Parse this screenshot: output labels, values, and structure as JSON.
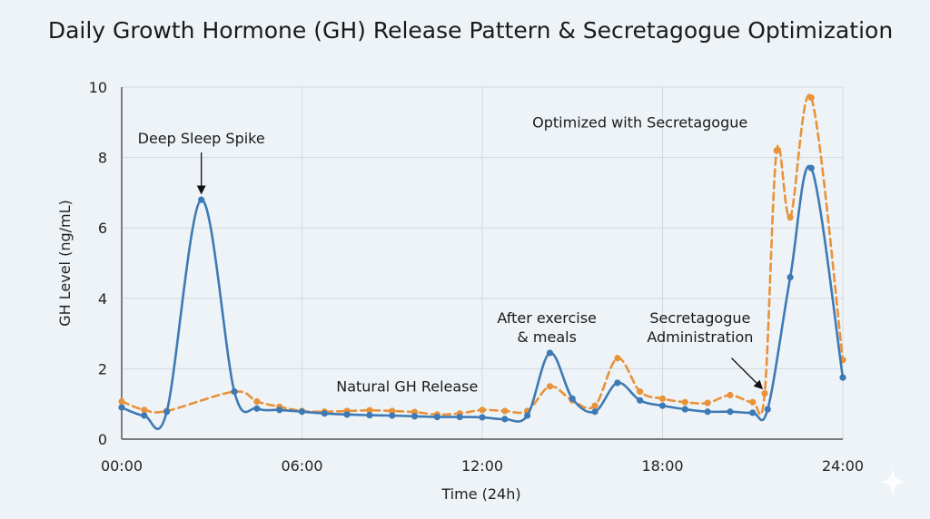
{
  "chart_data": {
    "type": "line",
    "title": "Daily Growth Hormone (GH) Release Pattern & Secretagogue Optimization",
    "xlabel": "Time (24h)",
    "ylabel": "GH Level (ng/mL)",
    "xlim": [
      0,
      24
    ],
    "ylim": [
      0,
      10
    ],
    "grid": true,
    "x_ticks": [
      {
        "value": 0,
        "label": "00:00"
      },
      {
        "value": 6,
        "label": "06:00"
      },
      {
        "value": 12,
        "label": "12:00"
      },
      {
        "value": 18,
        "label": "18:00"
      },
      {
        "value": 24,
        "label": "24:00"
      }
    ],
    "y_ticks": [
      0,
      2,
      4,
      6,
      8,
      10
    ],
    "series": [
      {
        "name": "Natural GH Release",
        "color": "#3d7ab5",
        "style": "solid",
        "points": [
          [
            0.0,
            0.9
          ],
          [
            0.75,
            0.67
          ],
          [
            1.5,
            0.78
          ],
          [
            2.65,
            6.8
          ],
          [
            3.75,
            1.35
          ],
          [
            4.5,
            0.87
          ],
          [
            5.25,
            0.83
          ],
          [
            6.0,
            0.78
          ],
          [
            6.75,
            0.73
          ],
          [
            7.5,
            0.7
          ],
          [
            8.25,
            0.68
          ],
          [
            9.0,
            0.67
          ],
          [
            9.75,
            0.65
          ],
          [
            10.5,
            0.63
          ],
          [
            11.25,
            0.63
          ],
          [
            12.0,
            0.62
          ],
          [
            12.75,
            0.57
          ],
          [
            13.5,
            0.67
          ],
          [
            14.25,
            2.45
          ],
          [
            15.0,
            1.15
          ],
          [
            15.75,
            0.78
          ],
          [
            16.5,
            1.6
          ],
          [
            17.25,
            1.1
          ],
          [
            18.0,
            0.95
          ],
          [
            18.75,
            0.85
          ],
          [
            19.5,
            0.78
          ],
          [
            20.25,
            0.78
          ],
          [
            21.0,
            0.75
          ],
          [
            21.5,
            0.85
          ],
          [
            22.25,
            4.6
          ],
          [
            22.95,
            7.7
          ],
          [
            24.0,
            1.75
          ]
        ]
      },
      {
        "name": "Optimized with Secretagogue",
        "color": "#e8923a",
        "style": "dashed",
        "points": [
          [
            0.0,
            1.07
          ],
          [
            0.75,
            0.83
          ],
          [
            1.5,
            0.8
          ],
          [
            3.75,
            1.35
          ],
          [
            4.5,
            1.07
          ],
          [
            5.25,
            0.92
          ],
          [
            6.0,
            0.8
          ],
          [
            6.75,
            0.78
          ],
          [
            7.5,
            0.8
          ],
          [
            8.25,
            0.82
          ],
          [
            9.0,
            0.8
          ],
          [
            9.75,
            0.77
          ],
          [
            10.5,
            0.7
          ],
          [
            11.25,
            0.73
          ],
          [
            12.0,
            0.83
          ],
          [
            12.75,
            0.8
          ],
          [
            13.5,
            0.8
          ],
          [
            14.25,
            1.5
          ],
          [
            15.0,
            1.1
          ],
          [
            15.75,
            0.95
          ],
          [
            16.5,
            2.3
          ],
          [
            17.25,
            1.35
          ],
          [
            18.0,
            1.15
          ],
          [
            18.75,
            1.05
          ],
          [
            19.5,
            1.03
          ],
          [
            20.25,
            1.25
          ],
          [
            21.0,
            1.05
          ],
          [
            21.4,
            1.3
          ],
          [
            21.8,
            8.2
          ],
          [
            22.25,
            6.3
          ],
          [
            22.95,
            9.7
          ],
          [
            24.0,
            2.25
          ]
        ]
      }
    ],
    "annotations": [
      {
        "lines": [
          "Deep Sleep Spike"
        ],
        "x": 2.65,
        "y": 8.4,
        "arrow_to": [
          2.65,
          7.0
        ],
        "anchor": "middle"
      },
      {
        "lines": [
          "Optimized with Secretagogue"
        ],
        "x": 17.25,
        "y": 8.85,
        "anchor": "middle"
      },
      {
        "lines": [
          "Natural GH Release"
        ],
        "x": 9.5,
        "y": 1.35,
        "anchor": "middle"
      },
      {
        "lines": [
          "After exercise",
          "& meals"
        ],
        "x": 14.15,
        "y": 3.3,
        "anchor": "middle"
      },
      {
        "lines": [
          "Secretagogue",
          "Administration"
        ],
        "x": 19.25,
        "y": 3.3,
        "arrow_from": [
          20.3,
          2.3
        ],
        "arrow_to": [
          21.3,
          1.45
        ],
        "anchor": "middle"
      }
    ]
  }
}
